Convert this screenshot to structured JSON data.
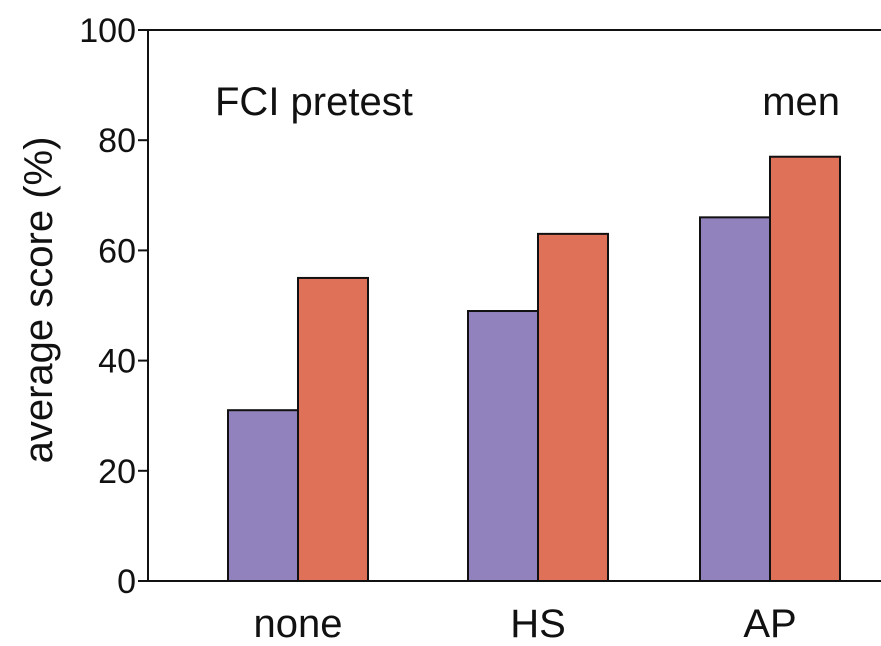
{
  "chart_data": {
    "type": "bar",
    "ylabel": "average score (%)",
    "ylim": [
      0,
      100
    ],
    "yticks": [
      "0",
      "20",
      "40",
      "60",
      "80",
      "100"
    ],
    "categories": [
      "none",
      "HS",
      "AP"
    ],
    "series": [
      {
        "values": [
          31,
          49,
          66
        ],
        "color": "#9181bc"
      },
      {
        "values": [
          55,
          63,
          77
        ],
        "color": "#e07159"
      }
    ],
    "annotations": {
      "left": "FCI pretest",
      "right": "men"
    }
  }
}
